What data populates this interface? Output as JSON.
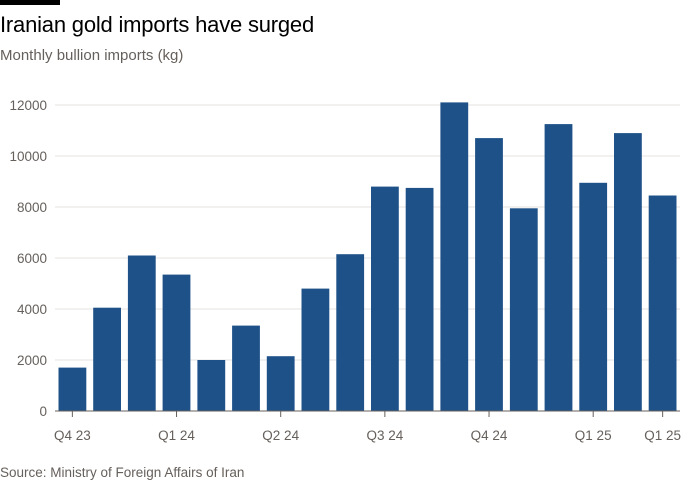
{
  "header": {
    "title": "Iranian gold imports have surged",
    "subtitle": "Monthly bullion imports (kg)"
  },
  "footer": {
    "source": "Source: Ministry of Foreign Affairs of Iran"
  },
  "colors": {
    "bar": "#1f5189",
    "grid": "#e6e3e0",
    "axis": "#66605c",
    "accent": "#000000"
  },
  "chart_data": {
    "type": "bar",
    "title": "Iranian gold imports have surged",
    "subtitle": "Monthly bullion imports (kg)",
    "xlabel": "",
    "ylabel": "",
    "categories": [
      "Q4 23",
      "",
      "",
      "Q1 24",
      "",
      "",
      "Q2 24",
      "",
      "",
      "Q3 24",
      "",
      "",
      "Q4 24",
      "",
      "",
      "Q1 25",
      "",
      "Q1 25"
    ],
    "values": [
      1700,
      4050,
      6100,
      5350,
      2000,
      3350,
      2150,
      4800,
      6150,
      8800,
      8750,
      12100,
      10700,
      7950,
      11250,
      8950,
      10900,
      8450
    ],
    "ylim": [
      0,
      12000
    ],
    "yticks": [
      0,
      2000,
      4000,
      6000,
      8000,
      10000,
      12000
    ],
    "grid": true,
    "legend": "none"
  }
}
